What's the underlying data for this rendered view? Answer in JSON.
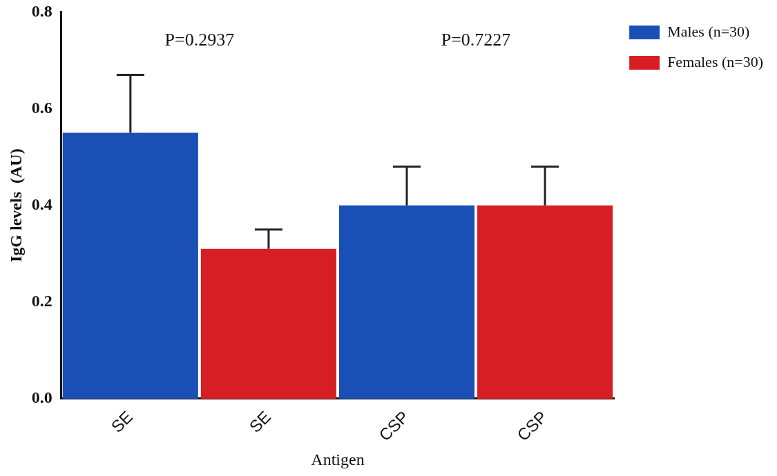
{
  "chart_data": {
    "type": "bar",
    "xlabel": "Antigen",
    "ylabel": "IgG levels  (AU)",
    "categories": [
      "SE",
      "SE",
      "CSP",
      "CSP"
    ],
    "series": [
      {
        "name": "Males (n=30)",
        "color": "#1a4fb5",
        "values": [
          0.55,
          null,
          0.4,
          null
        ],
        "errors": [
          [
            0.55,
            0.67
          ],
          null,
          [
            0.4,
            0.48
          ],
          null
        ]
      },
      {
        "name": "Females (n=30)",
        "color": "#d81e25",
        "values": [
          null,
          0.31,
          null,
          0.4
        ],
        "errors": [
          null,
          [
            0.31,
            0.35
          ],
          null,
          [
            0.4,
            0.48
          ]
        ]
      }
    ],
    "annotations": [
      "P=0.2937",
      "P=0.7227"
    ],
    "ylim": [
      0,
      0.8
    ],
    "yticks": [
      {
        "value": 0,
        "label": "0.0"
      },
      {
        "value": 0.2,
        "label": "0.2"
      },
      {
        "value": 0.4,
        "label": "0.4"
      },
      {
        "value": 0.6,
        "label": "0.6"
      },
      {
        "value": 0.8,
        "label": "0.8"
      }
    ],
    "grid": false,
    "legend": "top right"
  }
}
